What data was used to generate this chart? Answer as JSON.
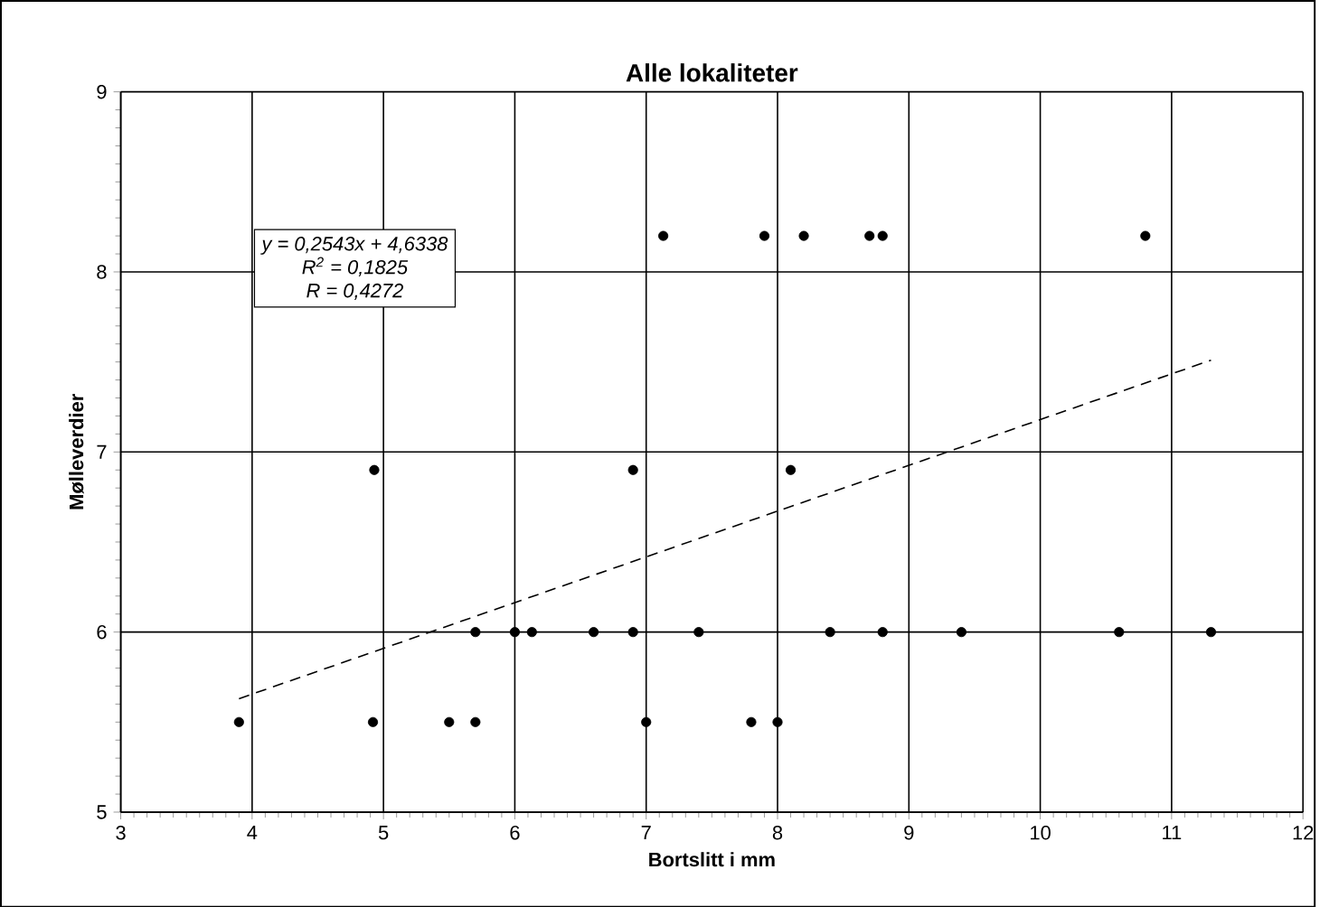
{
  "chart_data": {
    "type": "scatter",
    "title": "Alle lokaliteter",
    "xlabel": "Bortslitt i mm",
    "ylabel": "Mølleverdier",
    "xlim": [
      3,
      12
    ],
    "ylim": [
      5,
      9
    ],
    "xticks": [
      3,
      4,
      5,
      6,
      7,
      8,
      9,
      10,
      11,
      12
    ],
    "yticks": [
      5,
      6,
      7,
      8,
      9
    ],
    "grid": true,
    "marker": "circle",
    "series": [
      {
        "color": "#000000",
        "x": [
          7.13,
          7.9,
          8.2,
          8.7,
          8.8,
          10.8,
          4.93,
          6.9,
          8.1,
          5.7,
          6.0,
          6.13,
          6.6,
          6.9,
          7.4,
          8.4,
          8.8,
          9.4,
          10.6,
          11.3,
          3.9,
          4.92,
          5.5,
          5.7,
          7.0,
          7.8,
          8.0
        ],
        "values": [
          8.2,
          8.2,
          8.2,
          8.2,
          8.2,
          8.2,
          6.9,
          6.9,
          6.9,
          6,
          6,
          6,
          6,
          6,
          6,
          6,
          6,
          6,
          6,
          6,
          5.5,
          5.5,
          5.5,
          5.5,
          5.5,
          5.5,
          5.5
        ]
      },
      {
        "type": "line",
        "color": "#000000",
        "line_style": "dashed",
        "marker": "none",
        "x": [
          3.9,
          11.3
        ],
        "values": [
          5.63,
          7.51
        ]
      }
    ],
    "annotations": [
      "*y = 0,2543x + 4,6338*",
      "*R$^{2}$ = 0,1825*",
      "*R = 0,4272*"
    ]
  }
}
